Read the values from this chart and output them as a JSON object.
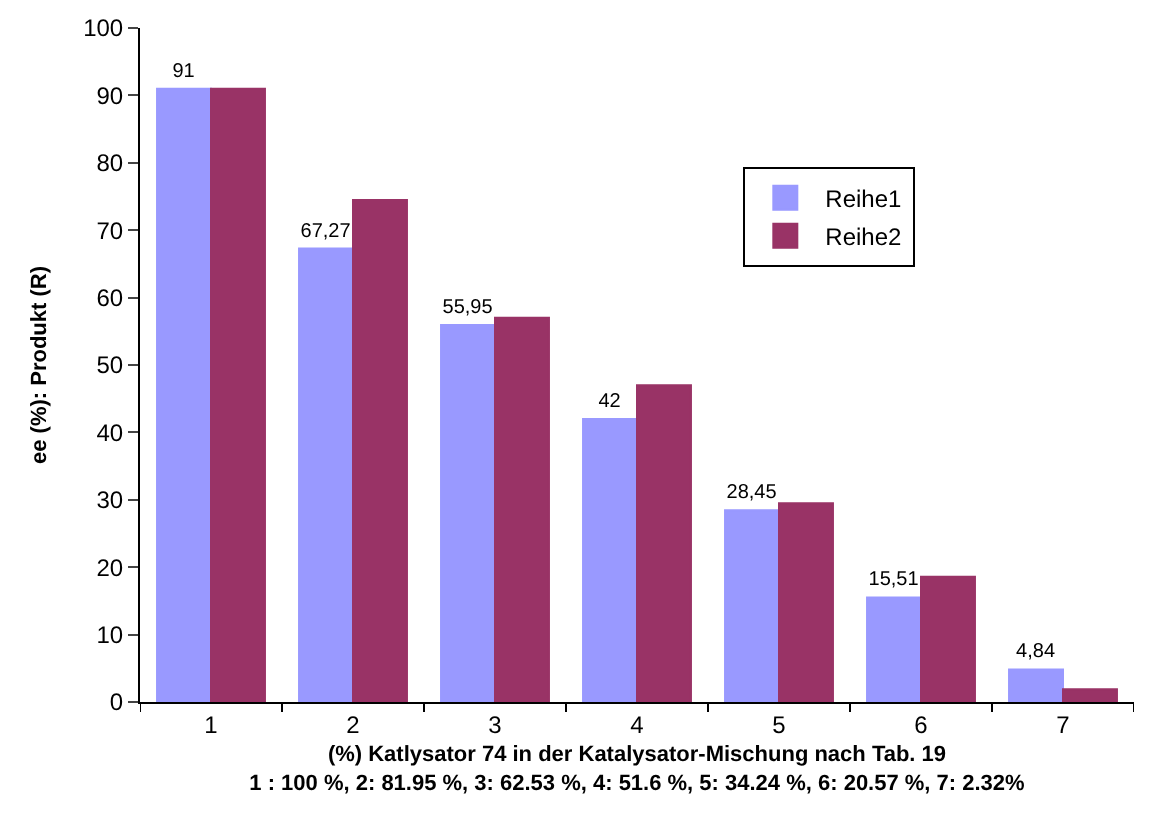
{
  "chart_data": {
    "type": "bar",
    "categories": [
      "1",
      "2",
      "3",
      "4",
      "5",
      "6",
      "7"
    ],
    "xlabel": "(%) Katlysator 74 in der Katalysator-Mischung nach Tab. 19\n1 : 100 %, 2: 81.95 %, 3: 62.53 %, 4: 51.6 %, 5: 34.24 %, 6: 20.57 %, 7: 2.32%",
    "ylabel": "ee (%): Produkt (R)",
    "series": [
      {
        "name": "Reihe1",
        "color": "#9999ff",
        "values": [
          91,
          67.27,
          55.95,
          42,
          28.45,
          15.51,
          4.84
        ],
        "value_labels": [
          "91",
          "67,27",
          "55,95",
          "42",
          "28,45",
          "15,51",
          "4,84"
        ]
      },
      {
        "name": "Reihe2",
        "color": "#993366",
        "values": [
          91,
          74.5,
          57,
          47,
          29.5,
          18.6,
          1.9
        ]
      }
    ],
    "ylim": [
      0,
      100
    ],
    "yticks": [
      0,
      10,
      20,
      30,
      40,
      50,
      60,
      70,
      80,
      90,
      100
    ],
    "legend": "right"
  }
}
